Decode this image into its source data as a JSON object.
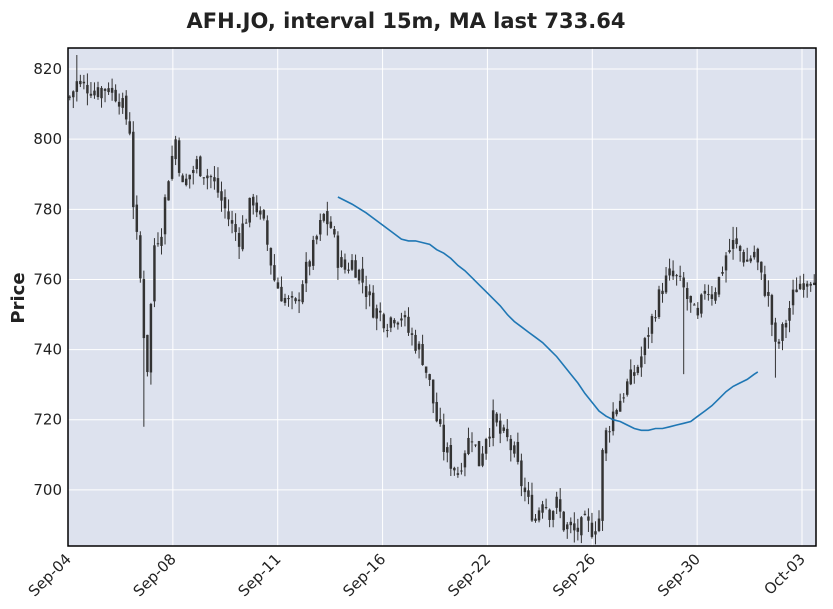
{
  "chart_data": {
    "type": "candlestick",
    "title": "AFH.JO, interval 15m, MA last 733.64",
    "xlabel": "",
    "ylabel": "Price",
    "ylim": [
      684,
      826
    ],
    "yticks": [
      700,
      720,
      740,
      760,
      780,
      800,
      820
    ],
    "xticks": [
      "Sep-04",
      "Sep-08",
      "Sep-11",
      "Sep-16",
      "Sep-22",
      "Sep-26",
      "Sep-30",
      "Oct-03"
    ],
    "grid": true,
    "colors": {
      "background": "#dde2ee",
      "grid": "#ffffff",
      "candle": "#333333",
      "ma_line": "#1f77b4",
      "frame": "#000000"
    },
    "candles": {
      "count": 212,
      "close_anchors": [
        [
          0,
          812
        ],
        [
          2,
          816
        ],
        [
          5,
          815
        ],
        [
          8,
          814
        ],
        [
          11,
          815
        ],
        [
          14,
          812
        ],
        [
          17,
          803
        ],
        [
          18,
          782
        ],
        [
          20,
          760
        ],
        [
          21,
          745
        ],
        [
          22,
          735
        ],
        [
          24,
          770
        ],
        [
          26,
          775
        ],
        [
          28,
          790
        ],
        [
          30,
          800
        ],
        [
          32,
          786
        ],
        [
          34,
          790
        ],
        [
          36,
          793
        ],
        [
          40,
          789
        ],
        [
          42,
          785
        ],
        [
          44,
          780
        ],
        [
          46,
          775
        ],
        [
          48,
          772
        ],
        [
          50,
          778
        ],
        [
          52,
          783
        ],
        [
          55,
          775
        ],
        [
          58,
          760
        ],
        [
          60,
          756
        ],
        [
          62,
          753
        ],
        [
          64,
          752
        ],
        [
          66,
          760
        ],
        [
          68,
          765
        ],
        [
          70,
          772
        ],
        [
          72,
          778
        ],
        [
          74,
          775
        ],
        [
          76,
          766
        ],
        [
          78,
          763
        ],
        [
          80,
          765
        ],
        [
          82,
          762
        ],
        [
          84,
          757
        ],
        [
          86,
          752
        ],
        [
          88,
          750
        ],
        [
          90,
          748
        ],
        [
          92,
          750
        ],
        [
          94,
          750
        ],
        [
          96,
          745
        ],
        [
          98,
          742
        ],
        [
          100,
          738
        ],
        [
          102,
          730
        ],
        [
          104,
          720
        ],
        [
          106,
          712
        ],
        [
          108,
          708
        ],
        [
          110,
          705
        ],
        [
          112,
          712
        ],
        [
          114,
          716
        ],
        [
          116,
          708
        ],
        [
          118,
          716
        ],
        [
          120,
          720
        ],
        [
          122,
          716
        ],
        [
          124,
          714
        ],
        [
          126,
          710
        ],
        [
          128,
          702
        ],
        [
          130,
          696
        ],
        [
          132,
          692
        ],
        [
          134,
          698
        ],
        [
          136,
          694
        ],
        [
          138,
          696
        ],
        [
          140,
          690
        ],
        [
          143,
          688
        ],
        [
          146,
          690
        ],
        [
          148,
          689
        ],
        [
          150,
          692
        ],
        [
          151,
          710
        ],
        [
          152,
          716
        ],
        [
          154,
          722
        ],
        [
          156,
          726
        ],
        [
          158,
          730
        ],
        [
          160,
          733
        ],
        [
          162,
          738
        ],
        [
          164,
          745
        ],
        [
          166,
          752
        ],
        [
          168,
          758
        ],
        [
          170,
          761
        ],
        [
          172,
          760
        ],
        [
          174,
          757
        ],
        [
          176,
          752
        ],
        [
          178,
          748
        ],
        [
          180,
          758
        ],
        [
          182,
          756
        ],
        [
          184,
          760
        ],
        [
          186,
          767
        ],
        [
          188,
          770
        ],
        [
          190,
          768
        ],
        [
          192,
          765
        ],
        [
          194,
          768
        ],
        [
          196,
          760
        ],
        [
          198,
          755
        ],
        [
          200,
          740
        ],
        [
          202,
          745
        ],
        [
          204,
          752
        ],
        [
          206,
          758
        ],
        [
          208,
          760
        ],
        [
          211,
          762
        ]
      ],
      "wick_extremes": [
        {
          "index": 2,
          "high": 824
        },
        {
          "index": 21,
          "low": 718
        },
        {
          "index": 143,
          "low": 685
        },
        {
          "index": 188,
          "high": 775
        },
        {
          "index": 174,
          "low": 733
        },
        {
          "index": 200,
          "low": 732
        }
      ]
    },
    "moving_average": {
      "name": "MA",
      "last": 733.64,
      "start_index": 76,
      "points": [
        [
          76,
          783.5
        ],
        [
          80,
          781.5
        ],
        [
          84,
          779
        ],
        [
          88,
          776
        ],
        [
          92,
          773
        ],
        [
          94,
          771.5
        ],
        [
          96,
          771
        ],
        [
          98,
          771
        ],
        [
          100,
          770.5
        ],
        [
          102,
          770
        ],
        [
          104,
          768.5
        ],
        [
          106,
          767.5
        ],
        [
          108,
          766
        ],
        [
          110,
          764
        ],
        [
          112,
          762.5
        ],
        [
          114,
          760.5
        ],
        [
          116,
          758.5
        ],
        [
          118,
          756.5
        ],
        [
          120,
          754.5
        ],
        [
          122,
          752.5
        ],
        [
          124,
          750
        ],
        [
          126,
          748
        ],
        [
          128,
          746.5
        ],
        [
          130,
          745
        ],
        [
          132,
          743.5
        ],
        [
          134,
          742
        ],
        [
          136,
          740
        ],
        [
          138,
          738
        ],
        [
          140,
          735.5
        ],
        [
          142,
          733
        ],
        [
          144,
          730.5
        ],
        [
          146,
          727.5
        ],
        [
          148,
          725
        ],
        [
          150,
          722.5
        ],
        [
          152,
          721
        ],
        [
          154,
          720
        ],
        [
          156,
          719.5
        ],
        [
          158,
          718.5
        ],
        [
          160,
          717.5
        ],
        [
          162,
          717
        ],
        [
          164,
          717
        ],
        [
          166,
          717.5
        ],
        [
          168,
          717.5
        ],
        [
          170,
          718
        ],
        [
          172,
          718.5
        ],
        [
          174,
          719
        ],
        [
          176,
          719.5
        ],
        [
          178,
          721
        ],
        [
          180,
          722.5
        ],
        [
          182,
          724
        ],
        [
          184,
          726
        ],
        [
          186,
          728
        ],
        [
          188,
          729.5
        ],
        [
          190,
          730.5
        ],
        [
          192,
          731.5
        ],
        [
          194,
          733
        ],
        [
          195,
          733.64
        ]
      ]
    }
  }
}
